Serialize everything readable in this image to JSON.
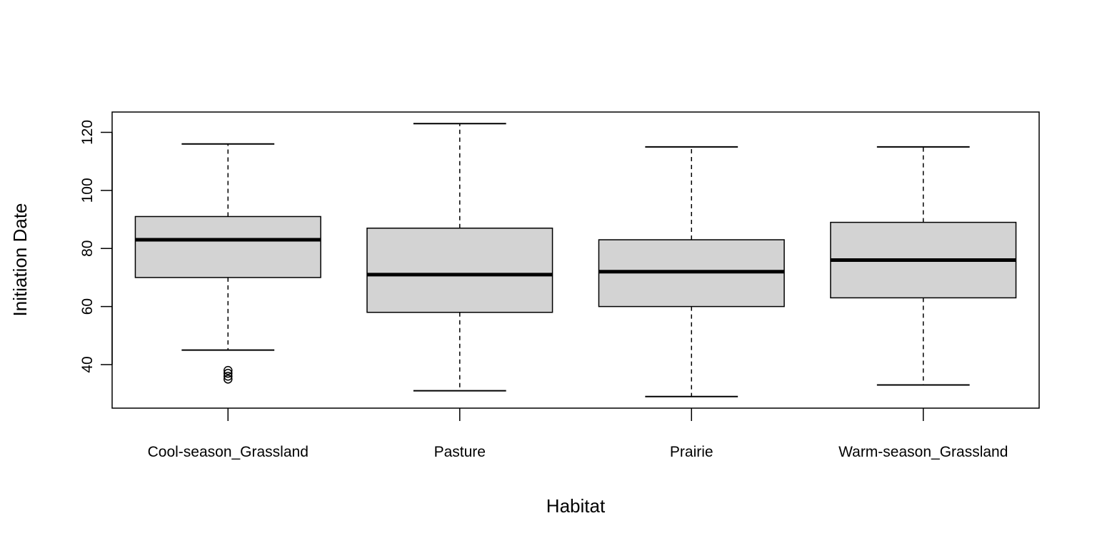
{
  "chart_data": {
    "type": "boxplot",
    "title": "",
    "xlabel": "Habitat",
    "ylabel": "Initiation Date",
    "ylim": [
      25,
      127
    ],
    "yticks": [
      "40",
      "60",
      "80",
      "100",
      "120"
    ],
    "grid": false,
    "legend": "none",
    "box_fill": "#d3d3d3",
    "line_color": "#000000",
    "categories": [
      "Cool-season_Grassland",
      "Pasture",
      "Prairie",
      "Warm-season_Grassland"
    ],
    "boxes": [
      {
        "category": "Cool-season_Grassland",
        "whisker_low": 45,
        "q1": 70,
        "median": 83,
        "q3": 91,
        "whisker_high": 116,
        "outliers": [
          35,
          36,
          37,
          38
        ]
      },
      {
        "category": "Pasture",
        "whisker_low": 31,
        "q1": 58,
        "median": 71,
        "q3": 87,
        "whisker_high": 123,
        "outliers": []
      },
      {
        "category": "Prairie",
        "whisker_low": 29,
        "q1": 60,
        "median": 72,
        "q3": 83,
        "whisker_high": 115,
        "outliers": []
      },
      {
        "category": "Warm-season_Grassland",
        "whisker_low": 33,
        "q1": 63,
        "median": 76,
        "q3": 89,
        "whisker_high": 115,
        "outliers": []
      }
    ]
  }
}
